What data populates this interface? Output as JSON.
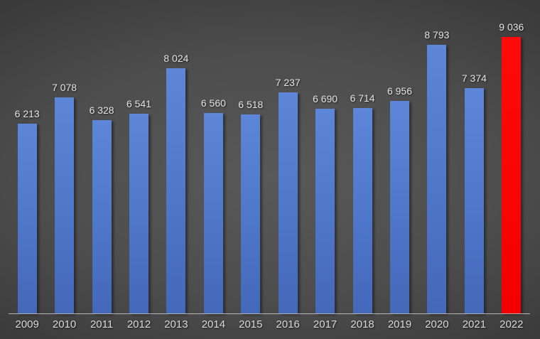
{
  "chart_data": {
    "type": "bar",
    "categories": [
      "2009",
      "2010",
      "2011",
      "2012",
      "2013",
      "2014",
      "2015",
      "2016",
      "2017",
      "2018",
      "2019",
      "2020",
      "2021",
      "2022"
    ],
    "values": [
      6213,
      7078,
      6328,
      6541,
      8024,
      6560,
      6518,
      7237,
      6690,
      6714,
      6956,
      8793,
      7374,
      9036
    ],
    "value_labels": [
      "6 213",
      "7 078",
      "6 328",
      "6 541",
      "8 024",
      "6 560",
      "6 518",
      "7 237",
      "6 690",
      "6 714",
      "6 956",
      "8 793",
      "7 374",
      "9 036"
    ],
    "highlight_index": 13,
    "title": "",
    "xlabel": "",
    "ylabel": "",
    "ylim": [
      0,
      9300
    ],
    "grid": false,
    "legend": false,
    "colors": {
      "bar_color": "#4E76C9",
      "highlight_color": "#FF0000",
      "label_color": "#E3E3E3",
      "axis_line_color": "#C9C9C9",
      "background_center": "#595959",
      "background_edge": "#262626"
    }
  }
}
